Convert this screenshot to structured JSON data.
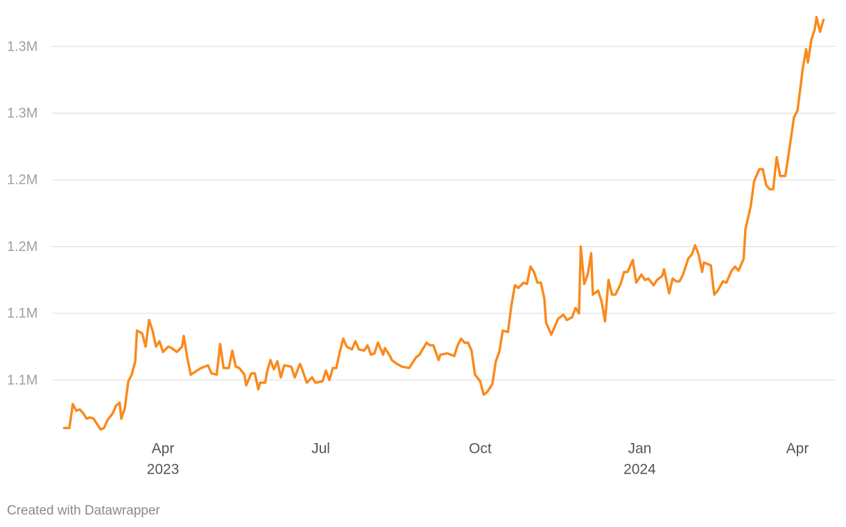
{
  "chart_data": {
    "type": "line",
    "credit": "Created with Datawrapper",
    "x": [
      2,
      5,
      7,
      9,
      11,
      13,
      15,
      17,
      19,
      21,
      23,
      25,
      27,
      30,
      32,
      34,
      35,
      37,
      39,
      41,
      43,
      44,
      47,
      49,
      51,
      53,
      55,
      57,
      59,
      62,
      64,
      67,
      70,
      71,
      73,
      75,
      81,
      85,
      87,
      90,
      92,
      94,
      97,
      99,
      101,
      103,
      106,
      107,
      110,
      112,
      114,
      115,
      118,
      119,
      121,
      123,
      125,
      127,
      129,
      133,
      135,
      138,
      139,
      142,
      145,
      147,
      151,
      153,
      155,
      157,
      159,
      161,
      163,
      165,
      168,
      170,
      172,
      175,
      177,
      179,
      181,
      183,
      186,
      187,
      190,
      191,
      194,
      197,
      201,
      205,
      207,
      211,
      213,
      215,
      218,
      219,
      223,
      227,
      229,
      231,
      233,
      235,
      237,
      239,
      242,
      244,
      246,
      249,
      251,
      253,
      255,
      258,
      260,
      262,
      264,
      267,
      269,
      271,
      273,
      275,
      277,
      279,
      280,
      283,
      285,
      287,
      290,
      292,
      295,
      297,
      299,
      300,
      302,
      304,
      306,
      307,
      310,
      312,
      314,
      316,
      318,
      320,
      323,
      325,
      327,
      330,
      332,
      335,
      337,
      339,
      342,
      344,
      347,
      348,
      351,
      353,
      355,
      357,
      359,
      362,
      364,
      366,
      368,
      370,
      371,
      375,
      377,
      379,
      382,
      384,
      387,
      389,
      391,
      394,
      395,
      398,
      400,
      403,
      405,
      407,
      409,
      411,
      413,
      415,
      418,
      420,
      423,
      425,
      427,
      428,
      430,
      431,
      433,
      435,
      436,
      438,
      440
    ],
    "series": [
      {
        "color": "#fa8a1c",
        "values": [
          1014000,
          1014000,
          1032000,
          1027000,
          1028000,
          1025000,
          1021000,
          1022000,
          1021000,
          1017000,
          1013000,
          1014000,
          1020000,
          1025000,
          1031000,
          1033000,
          1021000,
          1029000,
          1049000,
          1054000,
          1064000,
          1087000,
          1085000,
          1075000,
          1095000,
          1087000,
          1075000,
          1079000,
          1071000,
          1075000,
          1074000,
          1071000,
          1075000,
          1083000,
          1067000,
          1054000,
          1059000,
          1061000,
          1055000,
          1054000,
          1077000,
          1059000,
          1059000,
          1072000,
          1060000,
          1059000,
          1054000,
          1046000,
          1055000,
          1055000,
          1043000,
          1048000,
          1048000,
          1056000,
          1065000,
          1058000,
          1064000,
          1052000,
          1061000,
          1060000,
          1052000,
          1062000,
          1059000,
          1048000,
          1052000,
          1048000,
          1049000,
          1057000,
          1050000,
          1059000,
          1059000,
          1071000,
          1081000,
          1075000,
          1073000,
          1079000,
          1073000,
          1072000,
          1076000,
          1069000,
          1070000,
          1078000,
          1069000,
          1074000,
          1068000,
          1065000,
          1062000,
          1060000,
          1059000,
          1067000,
          1069000,
          1078000,
          1076000,
          1076000,
          1065000,
          1069000,
          1070000,
          1068000,
          1076000,
          1081000,
          1078000,
          1078000,
          1072000,
          1054000,
          1049000,
          1039000,
          1041000,
          1047000,
          1064000,
          1071000,
          1087000,
          1086000,
          1106000,
          1121000,
          1119000,
          1123000,
          1122000,
          1135000,
          1131000,
          1123000,
          1123000,
          1111000,
          1093000,
          1084000,
          1090000,
          1096000,
          1099000,
          1095000,
          1097000,
          1104000,
          1100000,
          1150000,
          1122000,
          1129000,
          1145000,
          1114000,
          1117000,
          1109000,
          1094000,
          1125000,
          1114000,
          1114000,
          1122000,
          1131000,
          1131000,
          1140000,
          1123000,
          1129000,
          1125000,
          1126000,
          1121000,
          1125000,
          1128000,
          1133000,
          1115000,
          1126000,
          1124000,
          1124000,
          1129000,
          1141000,
          1144000,
          1151000,
          1144000,
          1131000,
          1138000,
          1136000,
          1114000,
          1117000,
          1124000,
          1123000,
          1132000,
          1135000,
          1132000,
          1141000,
          1163000,
          1180000,
          1199000,
          1208000,
          1208000,
          1196000,
          1193000,
          1193000,
          1217000,
          1203000,
          1203000,
          1220000,
          1247000,
          1252000,
          1272000,
          1283000,
          1298000,
          1288000,
          1305000,
          1313000,
          1322000,
          1311000,
          1320000
        ]
      }
    ],
    "xlim": [
      2,
      440
    ],
    "xticks": [
      {
        "value": 59,
        "label": "Apr"
      },
      {
        "value": 150,
        "label": "Jul"
      },
      {
        "value": 242,
        "label": "Oct"
      },
      {
        "value": 334,
        "label": "Jan"
      },
      {
        "value": 425,
        "label": "Apr"
      }
    ],
    "xtick_years": [
      {
        "value": 59,
        "label": "2023"
      },
      {
        "value": 334,
        "label": "2024"
      }
    ],
    "ylim": [
      1010000,
      1330000
    ],
    "yticks": [
      {
        "value": 1050000,
        "label": "1.1M"
      },
      {
        "value": 1100000,
        "label": "1.1M"
      },
      {
        "value": 1150000,
        "label": "1.2M"
      },
      {
        "value": 1200000,
        "label": "1.2M"
      },
      {
        "value": 1250000,
        "label": "1.3M"
      },
      {
        "value": 1300000,
        "label": "1.3M"
      }
    ],
    "grid": true
  }
}
